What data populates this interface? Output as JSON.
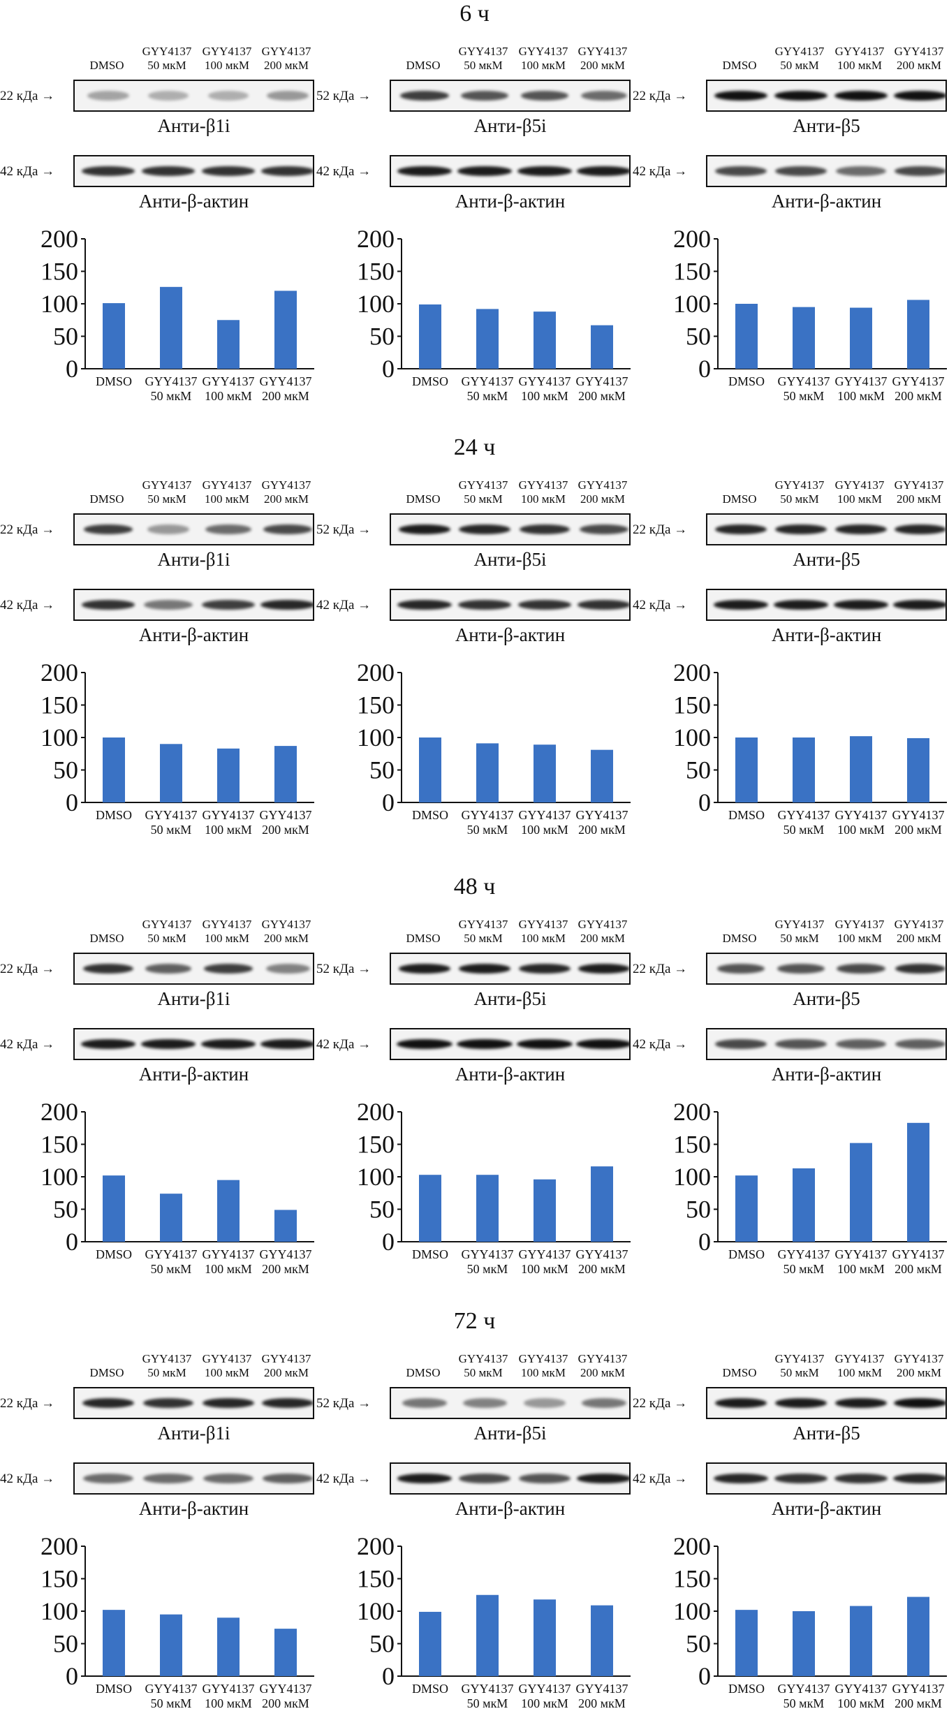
{
  "colors": {
    "bar": "#3a72c4",
    "axis": "#111111",
    "band": "#111111",
    "strip_bg": "#f3f3f3"
  },
  "lane_labels": [
    "DMSO",
    "GYY4137\n50 мкМ",
    "GYY4137\n100 мкМ",
    "GYY4137\n200 мкМ"
  ],
  "sections": [
    {
      "title": "6 ч",
      "panels": [
        {
          "target_label": "Анти-β1i",
          "target_mw": "22 кДа",
          "actin_label": "Анти-β-актин",
          "actin_mw": "42 кДа",
          "target_band": [
            0.35,
            0.3,
            0.3,
            0.4
          ],
          "actin_band": [
            0.85,
            0.85,
            0.85,
            0.85
          ]
        },
        {
          "target_label": "Анти-β5i",
          "target_mw": "52 кДа",
          "actin_label": "Анти-β-актин",
          "actin_mw": "42 кДа",
          "target_band": [
            0.8,
            0.7,
            0.7,
            0.6
          ],
          "actin_band": [
            0.95,
            0.95,
            0.95,
            0.95
          ]
        },
        {
          "target_label": "Анти-β5",
          "target_mw": "22 кДа",
          "actin_label": "Анти-β-актин",
          "actin_mw": "42 кДа",
          "target_band": [
            1.0,
            1.0,
            1.0,
            1.0
          ],
          "actin_band": [
            0.75,
            0.75,
            0.6,
            0.75
          ]
        }
      ]
    },
    {
      "title": "24 ч",
      "panels": [
        {
          "target_label": "Анти-β1i",
          "target_mw": "22 кДа",
          "actin_label": "Анти-β-актин",
          "actin_mw": "42 кДа",
          "target_band": [
            0.8,
            0.4,
            0.6,
            0.75
          ],
          "actin_band": [
            0.85,
            0.55,
            0.8,
            0.9
          ]
        },
        {
          "target_label": "Анти-β5i",
          "target_mw": "52 кДа",
          "actin_label": "Анти-β-актин",
          "actin_mw": "42 кДа",
          "target_band": [
            0.95,
            0.9,
            0.85,
            0.75
          ],
          "actin_band": [
            0.9,
            0.85,
            0.85,
            0.85
          ]
        },
        {
          "target_label": "Анти-β5",
          "target_mw": "22 кДа",
          "actin_label": "Анти-β-актин",
          "actin_mw": "42 кДа",
          "target_band": [
            0.9,
            0.9,
            0.9,
            0.9
          ],
          "actin_band": [
            0.95,
            0.95,
            0.95,
            0.95
          ]
        }
      ]
    },
    {
      "title": "48 ч",
      "panels": [
        {
          "target_label": "Анти-β1i",
          "target_mw": "22 кДа",
          "actin_label": "Анти-β-актин",
          "actin_mw": "42 кДа",
          "target_band": [
            0.85,
            0.65,
            0.8,
            0.5
          ],
          "actin_band": [
            0.95,
            0.95,
            0.95,
            0.95
          ]
        },
        {
          "target_label": "Анти-β5i",
          "target_mw": "52 кДа",
          "actin_label": "Анти-β-актин",
          "actin_mw": "42 кДа",
          "target_band": [
            0.95,
            0.95,
            0.9,
            0.95
          ],
          "actin_band": [
            1.0,
            1.0,
            1.0,
            1.0
          ]
        },
        {
          "target_label": "Анти-β5",
          "target_mw": "22 кДа",
          "actin_label": "Анти-β-актин",
          "actin_mw": "42 кДа",
          "target_band": [
            0.7,
            0.7,
            0.75,
            0.85
          ],
          "actin_band": [
            0.75,
            0.7,
            0.65,
            0.65
          ]
        }
      ]
    },
    {
      "title": "72 ч",
      "panels": [
        {
          "target_label": "Анти-β1i",
          "target_mw": "22 кДа",
          "actin_label": "Анти-β-актин",
          "actin_mw": "42 кДа",
          "target_band": [
            0.9,
            0.85,
            0.9,
            0.9
          ],
          "actin_band": [
            0.6,
            0.6,
            0.6,
            0.65
          ]
        },
        {
          "target_label": "Анти-β5i",
          "target_mw": "52 кДа",
          "actin_label": "Анти-β-актин",
          "actin_mw": "42 кДа",
          "target_band": [
            0.55,
            0.5,
            0.4,
            0.55
          ],
          "actin_band": [
            0.95,
            0.75,
            0.7,
            0.95
          ]
        },
        {
          "target_label": "Анти-β5",
          "target_mw": "22 кДа",
          "actin_label": "Анти-β-актин",
          "actin_mw": "42 кДа",
          "target_band": [
            0.95,
            0.95,
            0.95,
            1.0
          ],
          "actin_band": [
            0.9,
            0.85,
            0.85,
            0.9
          ]
        }
      ]
    }
  ],
  "chart_data": [
    {
      "type": "bar",
      "categories": [
        "DMSO",
        "GYY4137\n50 мкМ",
        "GYY4137\n100 мкМ",
        "GYY4137\n200 мкМ"
      ],
      "values": [
        101,
        126,
        75,
        120
      ],
      "ylim": [
        0,
        200
      ],
      "yticks": [
        0,
        50,
        100,
        150,
        200
      ]
    },
    {
      "type": "bar",
      "categories": [
        "DMSO",
        "GYY4137\n50 мкМ",
        "GYY4137\n100 мкМ",
        "GYY4137\n200 мкМ"
      ],
      "values": [
        99,
        92,
        88,
        67
      ],
      "ylim": [
        0,
        200
      ],
      "yticks": [
        0,
        50,
        100,
        150,
        200
      ]
    },
    {
      "type": "bar",
      "categories": [
        "DMSO",
        "GYY4137\n50 мкМ",
        "GYY4137\n100 мкМ",
        "GYY4137\n200 мкМ"
      ],
      "values": [
        100,
        95,
        94,
        106
      ],
      "ylim": [
        0,
        200
      ],
      "yticks": [
        0,
        50,
        100,
        150,
        200
      ]
    },
    {
      "type": "bar",
      "categories": [
        "DMSO",
        "GYY4137\n50 мкМ",
        "GYY4137\n100 мкМ",
        "GYY4137\n200 мкМ"
      ],
      "values": [
        100,
        90,
        83,
        87
      ],
      "ylim": [
        0,
        200
      ],
      "yticks": [
        0,
        50,
        100,
        150,
        200
      ]
    },
    {
      "type": "bar",
      "categories": [
        "DMSO",
        "GYY4137\n50 мкМ",
        "GYY4137\n100 мкМ",
        "GYY4137\n200 мкМ"
      ],
      "values": [
        100,
        91,
        89,
        81
      ],
      "ylim": [
        0,
        200
      ],
      "yticks": [
        0,
        50,
        100,
        150,
        200
      ]
    },
    {
      "type": "bar",
      "categories": [
        "DMSO",
        "GYY4137\n50 мкМ",
        "GYY4137\n100 мкМ",
        "GYY4137\n200 мкМ"
      ],
      "values": [
        100,
        100,
        102,
        99
      ],
      "ylim": [
        0,
        200
      ],
      "yticks": [
        0,
        50,
        100,
        150,
        200
      ]
    },
    {
      "type": "bar",
      "categories": [
        "DMSO",
        "GYY4137\n50 мкМ",
        "GYY4137\n100 мкМ",
        "GYY4137\n200 мкМ"
      ],
      "values": [
        102,
        74,
        95,
        49
      ],
      "ylim": [
        0,
        200
      ],
      "yticks": [
        0,
        50,
        100,
        150,
        200
      ]
    },
    {
      "type": "bar",
      "categories": [
        "DMSO",
        "GYY4137\n50 мкМ",
        "GYY4137\n100 мкМ",
        "GYY4137\n200 мкМ"
      ],
      "values": [
        103,
        103,
        96,
        116
      ],
      "ylim": [
        0,
        200
      ],
      "yticks": [
        0,
        50,
        100,
        150,
        200
      ]
    },
    {
      "type": "bar",
      "categories": [
        "DMSO",
        "GYY4137\n50 мкМ",
        "GYY4137\n100 мкМ",
        "GYY4137\n200 мкМ"
      ],
      "values": [
        102,
        113,
        152,
        183
      ],
      "ylim": [
        0,
        200
      ],
      "yticks": [
        0,
        50,
        100,
        150,
        200
      ]
    },
    {
      "type": "bar",
      "categories": [
        "DMSO",
        "GYY4137\n50 мкМ",
        "GYY4137\n100 мкМ",
        "GYY4137\n200 мкМ"
      ],
      "values": [
        102,
        95,
        90,
        73
      ],
      "ylim": [
        0,
        200
      ],
      "yticks": [
        0,
        50,
        100,
        150,
        200
      ]
    },
    {
      "type": "bar",
      "categories": [
        "DMSO",
        "GYY4137\n50 мкМ",
        "GYY4137\n100 мкМ",
        "GYY4137\n200 мкМ"
      ],
      "values": [
        99,
        125,
        118,
        109
      ],
      "ylim": [
        0,
        200
      ],
      "yticks": [
        0,
        50,
        100,
        150,
        200
      ]
    },
    {
      "type": "bar",
      "categories": [
        "DMSO",
        "GYY4137\n50 мкМ",
        "GYY4137\n100 мкМ",
        "GYY4137\n200 мкМ"
      ],
      "values": [
        102,
        100,
        108,
        122
      ],
      "ylim": [
        0,
        200
      ],
      "yticks": [
        0,
        50,
        100,
        150,
        200
      ]
    }
  ]
}
